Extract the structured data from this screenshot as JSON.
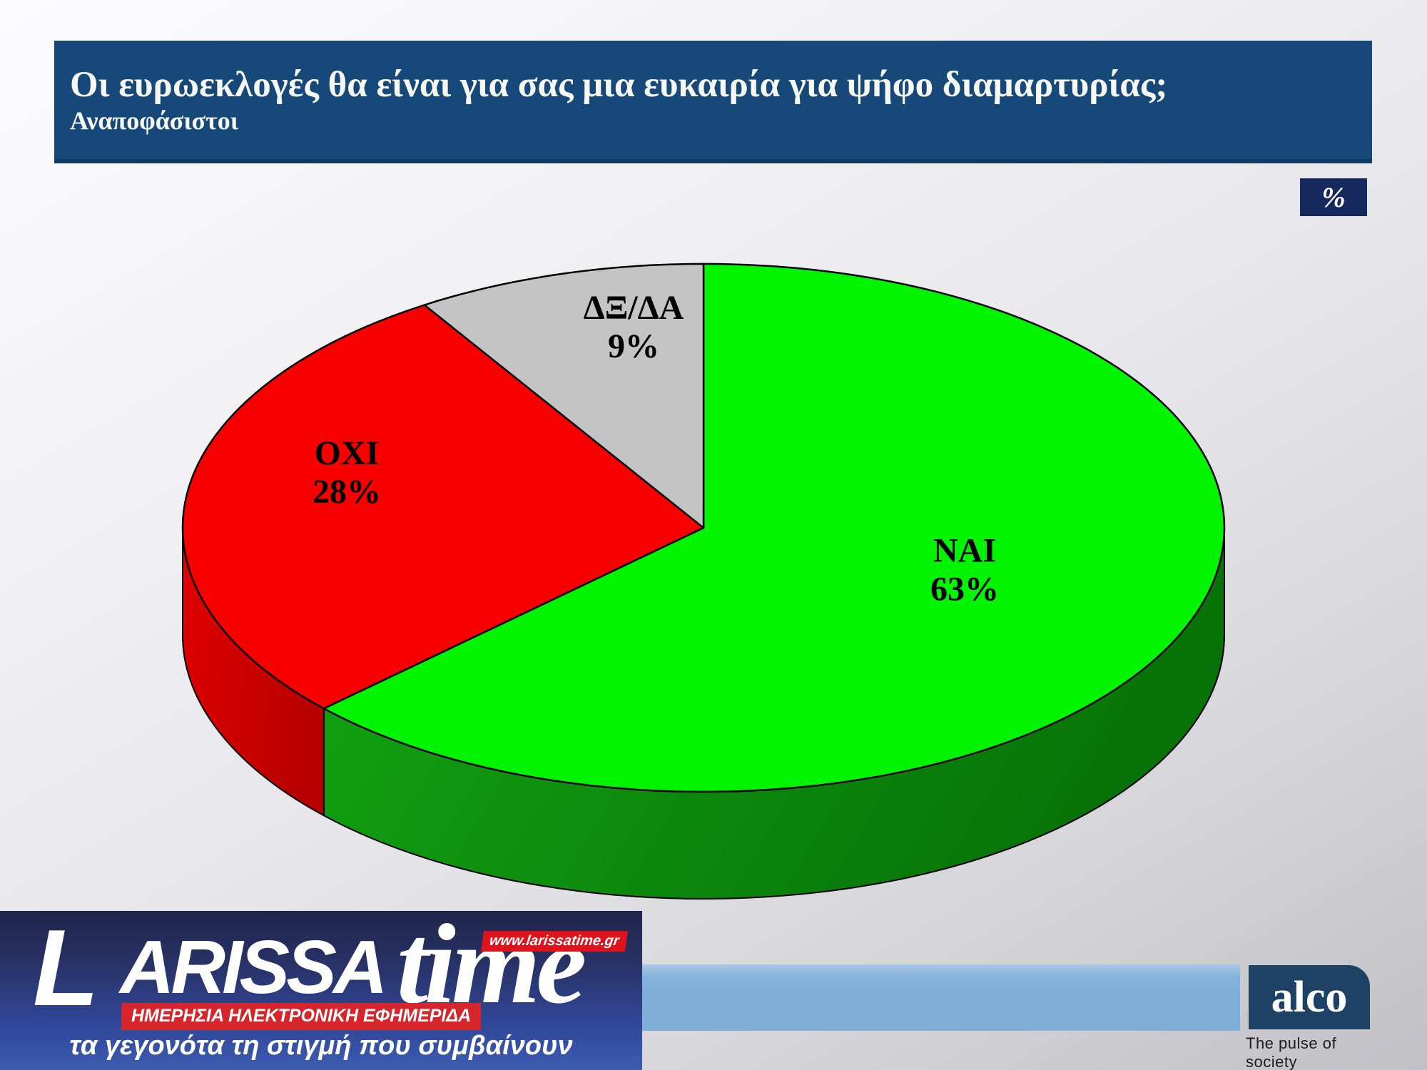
{
  "header": {
    "title": "Οι ευρωεκλογές θα είναι για σας μια ευκαιρία για ψήφο διαμαρτυρίας;",
    "subtitle": "Αναποφάσιστοι"
  },
  "percent_box": {
    "label": "%"
  },
  "chart_data": {
    "type": "pie",
    "style": "3d",
    "title": "Οι ευρωεκλογές θα είναι για σας μια ευκαιρία για ψήφο διαμαρτυρίας; — Αναποφάσιστοι",
    "unit": "%",
    "start_angle_deg": 0,
    "direction": "clockwise",
    "legend_position": "none",
    "slices": [
      {
        "id": "nai",
        "label": "ΝΑΙ",
        "value": 63,
        "color": "#00f400",
        "side_colors": [
          "#13a513",
          "#077207"
        ],
        "label_pos": [
          0.676,
          0.525
        ]
      },
      {
        "id": "oxi",
        "label": "ΟΧΙ",
        "value": 28,
        "color": "#f80000",
        "side_colors": [
          "#e10000",
          "#b80000"
        ],
        "label_pos": [
          0.243,
          0.434
        ]
      },
      {
        "id": "dxda",
        "label": "ΔΞ/ΔΑ",
        "value": 9,
        "color": "#c4c4c4",
        "side_colors": [
          "#9a9a9a",
          "#8a8a8a"
        ],
        "label_pos": [
          0.444,
          0.298
        ]
      }
    ],
    "geometry": {
      "cx": 0.493,
      "cy": 0.4933,
      "rx": 0.365,
      "ry": 0.2467,
      "depth": 0.1
    }
  },
  "footer": {
    "larissatime": {
      "word_initial": "L",
      "word_rest": "ARISSA",
      "word_time": "time",
      "url": "www.larissatime.gr",
      "red_band": "ΗΜΕΡΗΣΙΑ ΗΛΕΚΤΡΟΝΙΚΗ ΕΦΗΜΕΡΙΔΑ",
      "tagline": "τα γεγονότα τη στιγμή που συμβαίνουν"
    },
    "alco": {
      "name": "alco",
      "tagline": "The pulse of society"
    }
  }
}
